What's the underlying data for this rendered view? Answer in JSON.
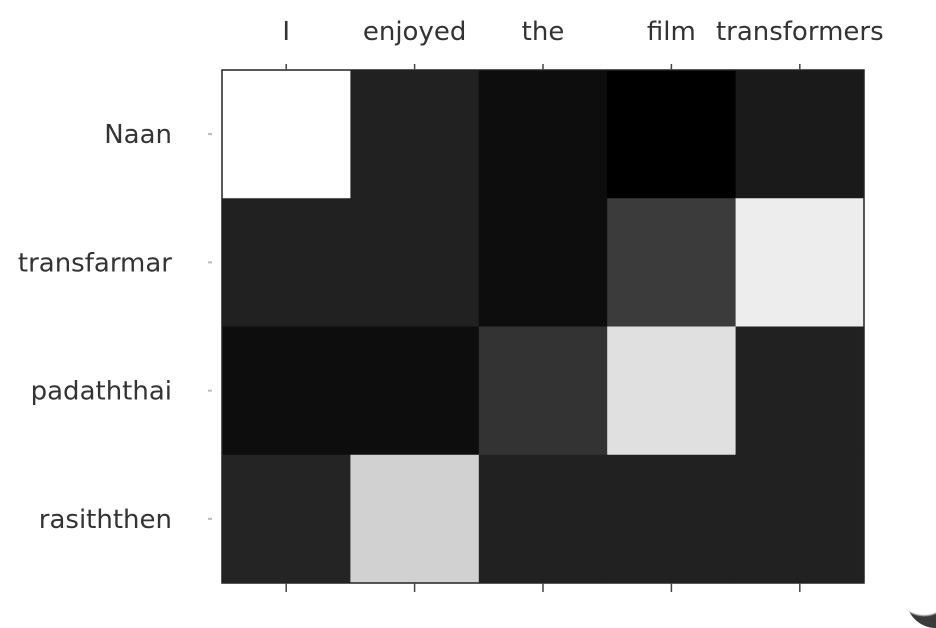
{
  "chart_data": {
    "type": "heatmap",
    "x_labels": [
      "I",
      "enjoyed",
      "the",
      "film",
      "transformers"
    ],
    "y_labels": [
      "Naan",
      "transfarmar",
      "padaththai",
      "rasiththen"
    ],
    "values": [
      [
        1.0,
        0.13,
        0.05,
        0.0,
        0.1
      ],
      [
        0.13,
        0.13,
        0.05,
        0.23,
        0.93
      ],
      [
        0.05,
        0.05,
        0.2,
        0.88,
        0.13
      ],
      [
        0.14,
        0.82,
        0.13,
        0.13,
        0.13
      ]
    ],
    "colormap": "gray",
    "x_axis_position": "top",
    "grid": false
  }
}
